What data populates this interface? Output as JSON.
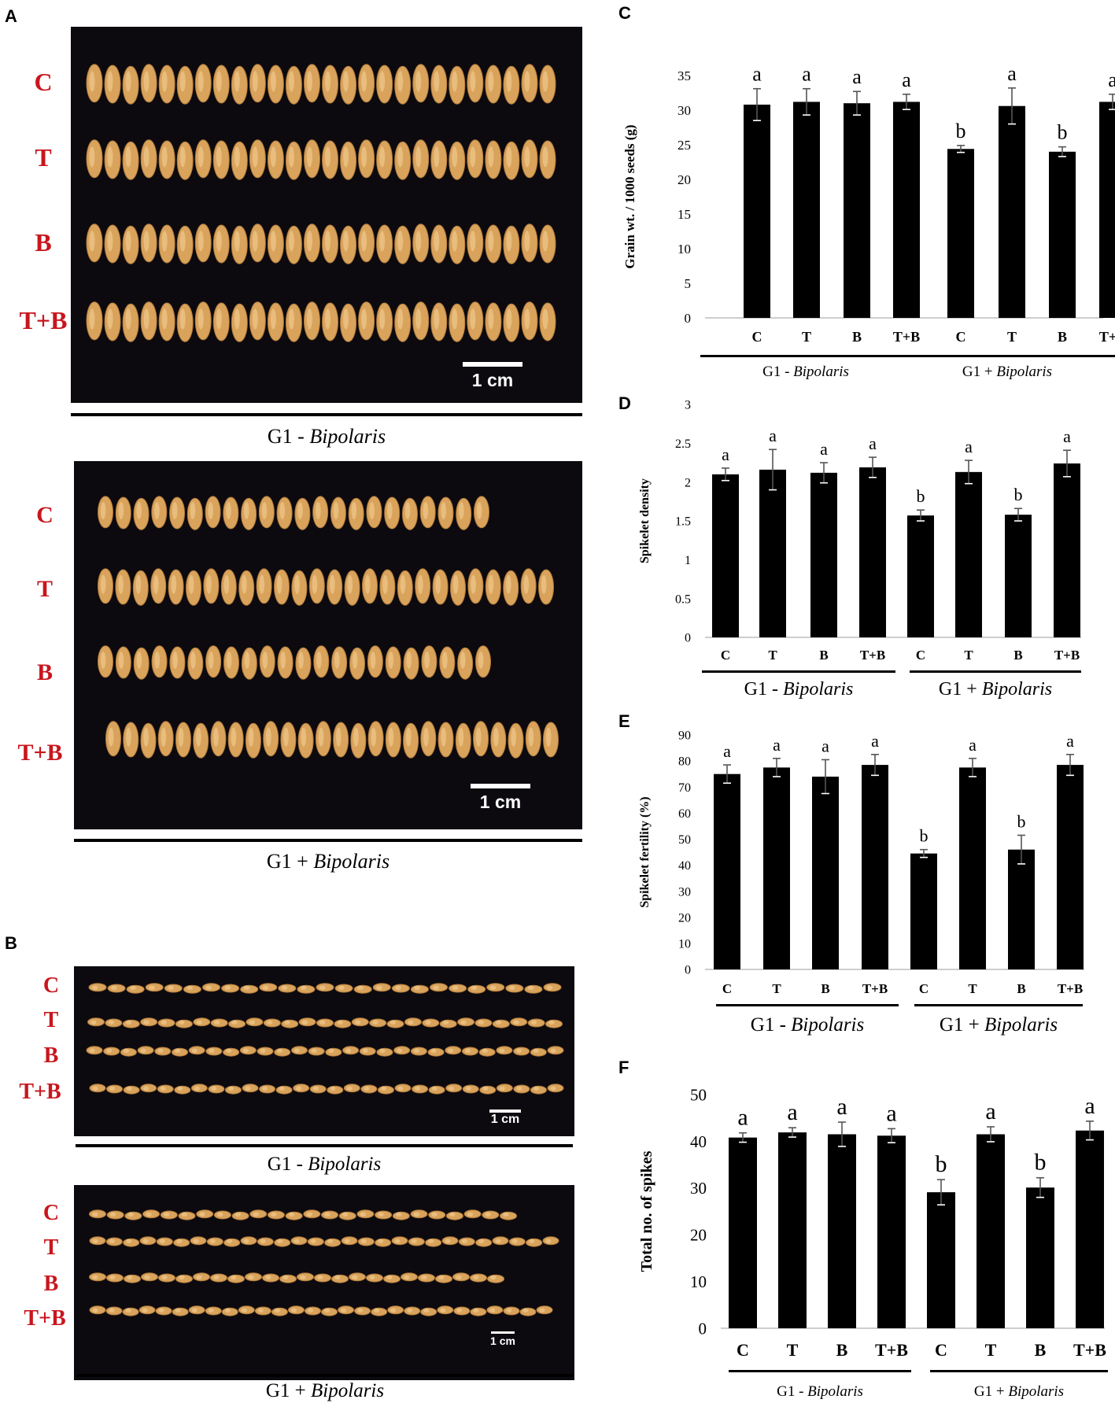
{
  "panels": {
    "A": {
      "letter": "A",
      "photos": [
        {
          "row_labels": [
            "C",
            "T",
            "B",
            "T+B"
          ],
          "seed_counts": [
            26,
            26,
            26,
            26
          ],
          "scale_label": "1 cm",
          "group_prefix": "G1 - ",
          "group_organism": "Bipolaris"
        },
        {
          "row_labels": [
            "C",
            "T",
            "B",
            "T+B"
          ],
          "seed_counts": [
            22,
            26,
            22,
            26
          ],
          "scale_label": "1 cm",
          "group_prefix": "G1 + ",
          "group_organism": "Bipolaris"
        }
      ]
    },
    "B": {
      "letter": "B",
      "photos": [
        {
          "row_labels": [
            "C",
            "T",
            "B",
            "T+B"
          ],
          "seed_counts": [
            25,
            27,
            28,
            28
          ],
          "scale_label": "1 cm",
          "group_prefix": "G1 - ",
          "group_organism": "Bipolaris"
        },
        {
          "row_labels": [
            "C",
            "T",
            "B",
            "T+B"
          ],
          "seed_counts": [
            24,
            28,
            24,
            28
          ],
          "scale_label": "1 cm",
          "group_prefix": "G1 + ",
          "group_organism": "Bipolaris"
        }
      ]
    }
  },
  "colors": {
    "label_red": "#c8161d",
    "photo_bg": "#0c0a0f",
    "seed": "#d9a35c",
    "bar": "#000000"
  },
  "chart_data": [
    {
      "panel": "C",
      "type": "bar",
      "categories": [
        "C",
        "T",
        "B",
        "T+B",
        "C",
        "T",
        "B",
        "T+B"
      ],
      "groups": [
        {
          "label_prefix": "G1 - ",
          "label_organism": "Bipolaris"
        },
        {
          "label_prefix": "G1 + ",
          "label_organism": "Bipolaris"
        }
      ],
      "values": [
        30.8,
        31.2,
        31.0,
        31.2,
        24.4,
        30.6,
        24.0,
        31.2
      ],
      "errors": [
        2.3,
        1.9,
        1.7,
        1.1,
        0.5,
        2.6,
        0.7,
        1.1
      ],
      "letters": [
        "a",
        "a",
        "a",
        "a",
        "b",
        "a",
        "b",
        "a"
      ],
      "ylabel": "Grain wt. / 1000 seeds (g)",
      "ylim": [
        0,
        35
      ],
      "yticks": [
        0,
        5,
        10,
        15,
        20,
        25,
        30,
        35
      ],
      "grid": false
    },
    {
      "panel": "D",
      "type": "bar",
      "categories": [
        "C",
        "T",
        "B",
        "T+B",
        "C",
        "T",
        "B",
        "T+B"
      ],
      "groups": [
        {
          "label_prefix": "G1 - ",
          "label_organism": "Bipolaris"
        },
        {
          "label_prefix": "G1 + ",
          "label_organism": "Bipolaris"
        }
      ],
      "values": [
        2.1,
        2.16,
        2.12,
        2.19,
        1.57,
        2.13,
        1.58,
        2.24
      ],
      "errors": [
        0.08,
        0.26,
        0.13,
        0.13,
        0.07,
        0.15,
        0.08,
        0.17
      ],
      "letters": [
        "a",
        "a",
        "a",
        "a",
        "b",
        "a",
        "b",
        "a"
      ],
      "ylabel": "Spikelet density",
      "ylim": [
        0,
        3
      ],
      "yticks": [
        0,
        0.5,
        1,
        1.5,
        2,
        2.5,
        3
      ],
      "grid": false
    },
    {
      "panel": "E",
      "type": "bar",
      "categories": [
        "C",
        "T",
        "B",
        "T+B",
        "C",
        "T",
        "B",
        "T+B"
      ],
      "groups": [
        {
          "label_prefix": "G1 - ",
          "label_organism": "Bipolaris"
        },
        {
          "label_prefix": "G1 + ",
          "label_organism": "Bipolaris"
        }
      ],
      "values": [
        75,
        77.5,
        74,
        78.5,
        44.5,
        77.5,
        46,
        78.5
      ],
      "errors": [
        3.5,
        3.5,
        6.5,
        4,
        1.5,
        3.5,
        5.5,
        4
      ],
      "letters": [
        "a",
        "a",
        "a",
        "a",
        "b",
        "a",
        "b",
        "a"
      ],
      "ylabel": "Spikelet fertility (%)",
      "ylim": [
        0,
        90
      ],
      "yticks": [
        0,
        10,
        20,
        30,
        40,
        50,
        60,
        70,
        80,
        90
      ],
      "grid": false
    },
    {
      "panel": "F",
      "type": "bar",
      "categories": [
        "C",
        "T",
        "B",
        "T+B",
        "C",
        "T",
        "B",
        "T+B"
      ],
      "groups": [
        {
          "label_prefix": "G1 - ",
          "label_organism": "Bipolaris"
        },
        {
          "label_prefix": "G1 + ",
          "label_organism": "Bipolaris"
        }
      ],
      "values": [
        40.8,
        41.9,
        41.5,
        41.2,
        29.1,
        41.5,
        30.1,
        42.3
      ],
      "errors": [
        1.0,
        1.0,
        2.6,
        1.5,
        2.7,
        1.6,
        2.1,
        2.0
      ],
      "letters": [
        "a",
        "a",
        "a",
        "a",
        "b",
        "a",
        "b",
        "a"
      ],
      "ylabel": "Total no. of spikes",
      "ylim": [
        0,
        50
      ],
      "yticks": [
        0,
        10,
        20,
        30,
        40,
        50
      ],
      "grid": false
    }
  ]
}
